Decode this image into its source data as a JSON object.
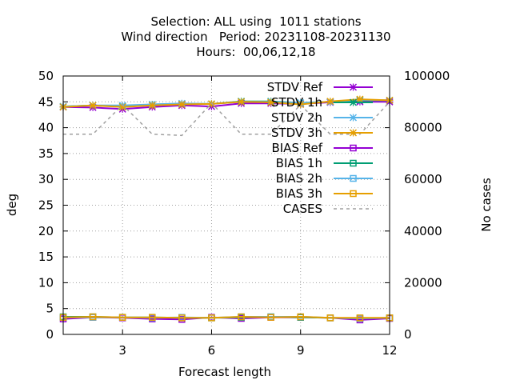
{
  "title_lines": [
    "Selection: ALL using  1011 stations",
    "Wind direction   Period: 20231108-20231130",
    "Hours:  00,06,12,18"
  ],
  "chart_data": {
    "type": "line",
    "xlabel": "Forecast length",
    "ylabel": "deg",
    "y2label": "No cases",
    "xlim": [
      1,
      12
    ],
    "ylim": [
      0,
      50
    ],
    "y2lim": [
      0,
      100000
    ],
    "xticks": [
      3,
      6,
      9,
      12
    ],
    "yticks": [
      0,
      5,
      10,
      15,
      20,
      25,
      30,
      35,
      40,
      45,
      50
    ],
    "y2ticks": [
      0,
      20000,
      40000,
      60000,
      80000,
      100000
    ],
    "grid": true,
    "legend_position": "top-right",
    "x": [
      1,
      2,
      3,
      4,
      5,
      6,
      7,
      8,
      9,
      10,
      11,
      12
    ],
    "series": [
      {
        "name": "STDV Ref",
        "axis": "left",
        "color": "#9400d3",
        "marker": "x",
        "dash": "solid",
        "values": [
          44.0,
          43.9,
          43.6,
          44.0,
          44.3,
          44.1,
          44.7,
          44.7,
          44.6,
          44.9,
          45.0,
          45.0
        ]
      },
      {
        "name": "STDV 1h",
        "axis": "left",
        "color": "#009e73",
        "marker": "x",
        "dash": "solid",
        "values": [
          44.1,
          44.3,
          44.1,
          44.5,
          44.6,
          44.6,
          45.1,
          45.1,
          44.8,
          45.0,
          45.3,
          45.3
        ]
      },
      {
        "name": "STDV 2h",
        "axis": "left",
        "color": "#56b4e9",
        "marker": "x",
        "dash": "solid",
        "values": [
          44.1,
          44.3,
          44.3,
          44.5,
          44.7,
          44.6,
          45.0,
          45.0,
          44.8,
          45.0,
          45.4,
          45.3
        ]
      },
      {
        "name": "STDV 3h",
        "axis": "left",
        "color": "#e69f00",
        "marker": "x",
        "dash": "solid",
        "values": [
          44.0,
          44.3,
          44.0,
          44.3,
          44.5,
          44.6,
          45.0,
          44.9,
          44.5,
          45.1,
          45.5,
          45.3
        ]
      },
      {
        "name": "BIAS Ref",
        "axis": "left",
        "color": "#9400d3",
        "marker": "square",
        "dash": "solid",
        "values": [
          3.0,
          3.3,
          3.2,
          3.0,
          2.9,
          3.3,
          3.1,
          3.3,
          3.3,
          3.2,
          2.8,
          3.1
        ]
      },
      {
        "name": "BIAS 1h",
        "axis": "left",
        "color": "#009e73",
        "marker": "square",
        "dash": "solid",
        "values": [
          3.4,
          3.4,
          3.3,
          3.3,
          3.2,
          3.2,
          3.3,
          3.4,
          3.3,
          3.2,
          3.1,
          3.2
        ]
      },
      {
        "name": "BIAS 2h",
        "axis": "left",
        "color": "#56b4e9",
        "marker": "square",
        "dash": "solid",
        "values": [
          3.3,
          3.3,
          3.3,
          3.2,
          3.3,
          3.2,
          3.4,
          3.4,
          3.4,
          3.2,
          3.1,
          3.2
        ]
      },
      {
        "name": "BIAS 3h",
        "axis": "left",
        "color": "#e69f00",
        "marker": "square",
        "dash": "solid",
        "values": [
          3.3,
          3.4,
          3.3,
          3.3,
          3.2,
          3.2,
          3.4,
          3.3,
          3.4,
          3.2,
          3.2,
          3.2
        ]
      },
      {
        "name": "CASES",
        "axis": "right",
        "color": "#a0a0a0",
        "marker": "none",
        "dash": "dashed",
        "values": [
          77500,
          77500,
          88800,
          77500,
          77000,
          89500,
          77500,
          77500,
          88800,
          77500,
          77500,
          90000
        ]
      }
    ]
  }
}
